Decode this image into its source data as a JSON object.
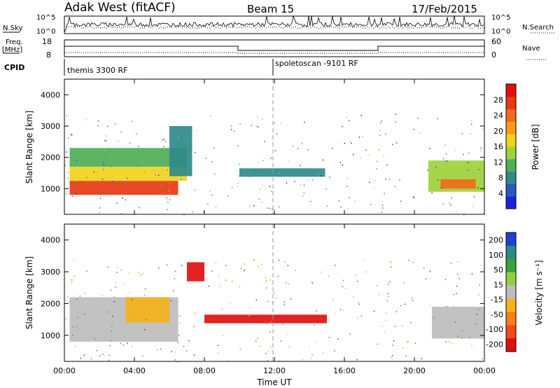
{
  "header": {
    "station": "Adak West (fitACF)",
    "beam": "Beam 15",
    "date": "17/Feb/2015"
  },
  "top_panels": {
    "nsky_label": "N.Sky",
    "nsky_ticks": [
      "10^5",
      "10^0"
    ],
    "nsearch_label": "N.Search",
    "nsearch_ticks": [
      "10^5",
      "10^0"
    ],
    "freq_label_line1": "Freq.",
    "freq_label_line2": "[MHz]",
    "freq_ticks": [
      "18",
      "8"
    ],
    "nave_label": "Nave",
    "nave_ticks": [
      "60",
      "0"
    ],
    "cpid_label": "CPID",
    "cpid_left": "themis 3300 RF",
    "cpid_right": "spoletoscan -9101 RF"
  },
  "chart_data": [
    {
      "type": "heatmap",
      "title": "",
      "xlabel": "",
      "ylabel": "Slant Range [km]",
      "x_ticks": [
        "00:00",
        "04:00",
        "08:00",
        "12:00",
        "16:00",
        "20:00",
        "00:00"
      ],
      "xlim": [
        0,
        24
      ],
      "y_ticks": [
        "1000",
        "2000",
        "3000",
        "4000"
      ],
      "ylim": [
        180,
        4500
      ],
      "colorbar": {
        "label": "Power [dB]",
        "ticks": [
          "4",
          "8",
          "12",
          "16",
          "20",
          "24",
          "28"
        ],
        "colors": [
          "#1b24d8",
          "#2a57c6",
          "#2f8a8a",
          "#4fae56",
          "#9fd13a",
          "#f2d21b",
          "#f59d1a",
          "#f26a18",
          "#e83a14",
          "#e01010"
        ]
      },
      "regions": [
        {
          "x": [
            0.3,
            6.5
          ],
          "y": [
            800,
            1250
          ],
          "value": 28
        },
        {
          "x": [
            0.3,
            7.0
          ],
          "y": [
            1250,
            1700
          ],
          "value": 18
        },
        {
          "x": [
            0.3,
            7.0
          ],
          "y": [
            1700,
            2300
          ],
          "value": 12
        },
        {
          "x": [
            6.0,
            7.3
          ],
          "y": [
            1400,
            3000
          ],
          "value": 8
        },
        {
          "x": [
            10.0,
            14.9
          ],
          "y": [
            1380,
            1650
          ],
          "value": 10
        },
        {
          "x": [
            20.8,
            24.0
          ],
          "y": [
            900,
            1900
          ],
          "value": 14
        },
        {
          "x": [
            21.5,
            23.5
          ],
          "y": [
            1000,
            1300
          ],
          "value": 24
        }
      ]
    },
    {
      "type": "heatmap",
      "title": "",
      "xlabel": "Time UT",
      "ylabel": "Slant Range [km]",
      "x_ticks": [
        "00:00",
        "04:00",
        "08:00",
        "12:00",
        "16:00",
        "20:00",
        "00:00"
      ],
      "xlim": [
        0,
        24
      ],
      "y_ticks": [
        "1000",
        "2000",
        "3000",
        "4000"
      ],
      "ylim": [
        180,
        4500
      ],
      "colorbar": {
        "label": "Velocity [m s⁻¹]",
        "ticks": [
          "200",
          "100",
          "50",
          "15",
          "-15",
          "-50",
          "-100",
          "-200"
        ],
        "colors": [
          "#1e3fd0",
          "#2a8a8a",
          "#3aa23a",
          "#8fd13a",
          "#bdbdbd",
          "#f5b21a",
          "#f5801a",
          "#f24a18",
          "#e01010"
        ]
      },
      "regions": [
        {
          "x": [
            0.3,
            6.5
          ],
          "y": [
            800,
            2200
          ],
          "value": 0
        },
        {
          "x": [
            3.5,
            6.0
          ],
          "y": [
            1400,
            2200
          ],
          "value": -50
        },
        {
          "x": [
            7.0,
            8.0
          ],
          "y": [
            2700,
            3300
          ],
          "value": -200
        },
        {
          "x": [
            8.0,
            15.0
          ],
          "y": [
            1380,
            1650
          ],
          "value": -200
        },
        {
          "x": [
            21.0,
            24.0
          ],
          "y": [
            900,
            1900
          ],
          "value": 0
        }
      ]
    }
  ]
}
